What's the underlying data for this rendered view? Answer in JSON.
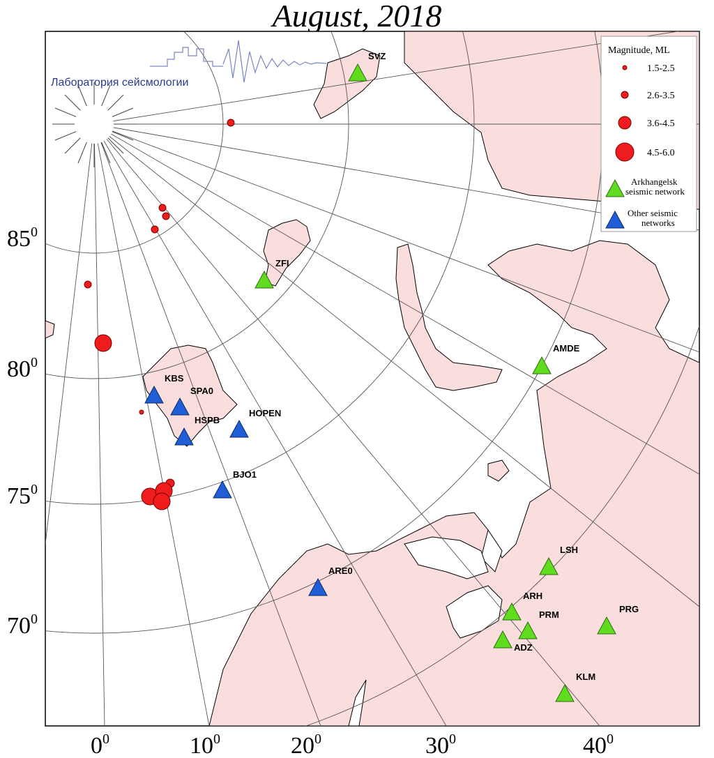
{
  "title": "August, 2018",
  "logo": {
    "text": "Лаборатория сейсмологии"
  },
  "latitude_labels": [
    {
      "value": "85",
      "deg": "0"
    },
    {
      "value": "80",
      "deg": "0"
    },
    {
      "value": "75",
      "deg": "0"
    },
    {
      "value": "70",
      "deg": "0"
    }
  ],
  "longitude_labels": [
    {
      "value": "0",
      "deg": "0"
    },
    {
      "value": "10",
      "deg": "0"
    },
    {
      "value": "20",
      "deg": "0"
    },
    {
      "value": "30",
      "deg": "0"
    },
    {
      "value": "40",
      "deg": "0"
    }
  ],
  "legend": {
    "title": "Magnitude, ML",
    "magnitudes": [
      "1.5-2.5",
      "2.6-3.5",
      "3.6-4.5",
      "4.5-6.0"
    ],
    "arkhangelsk": [
      "Arkhangelsk",
      "seismic network"
    ],
    "other": [
      "Other seismic",
      "networks"
    ]
  },
  "stations_arkhangelsk": [
    "SVZ",
    "ZFI",
    "AMDE",
    "LSH",
    "ARH",
    "PRM",
    "ADZ",
    "PRG",
    "KLM"
  ],
  "stations_other": [
    "KBS",
    "SPA0",
    "HSPB",
    "HOPEN",
    "BJO1",
    "ARE0"
  ],
  "colors": {
    "land": "#fadede",
    "sea": "#ffffff",
    "event": "#ee1c1c",
    "arkhangelsk": "#5fdc1e",
    "other": "#1f5ed6",
    "logo": "#2b3a8f"
  }
}
